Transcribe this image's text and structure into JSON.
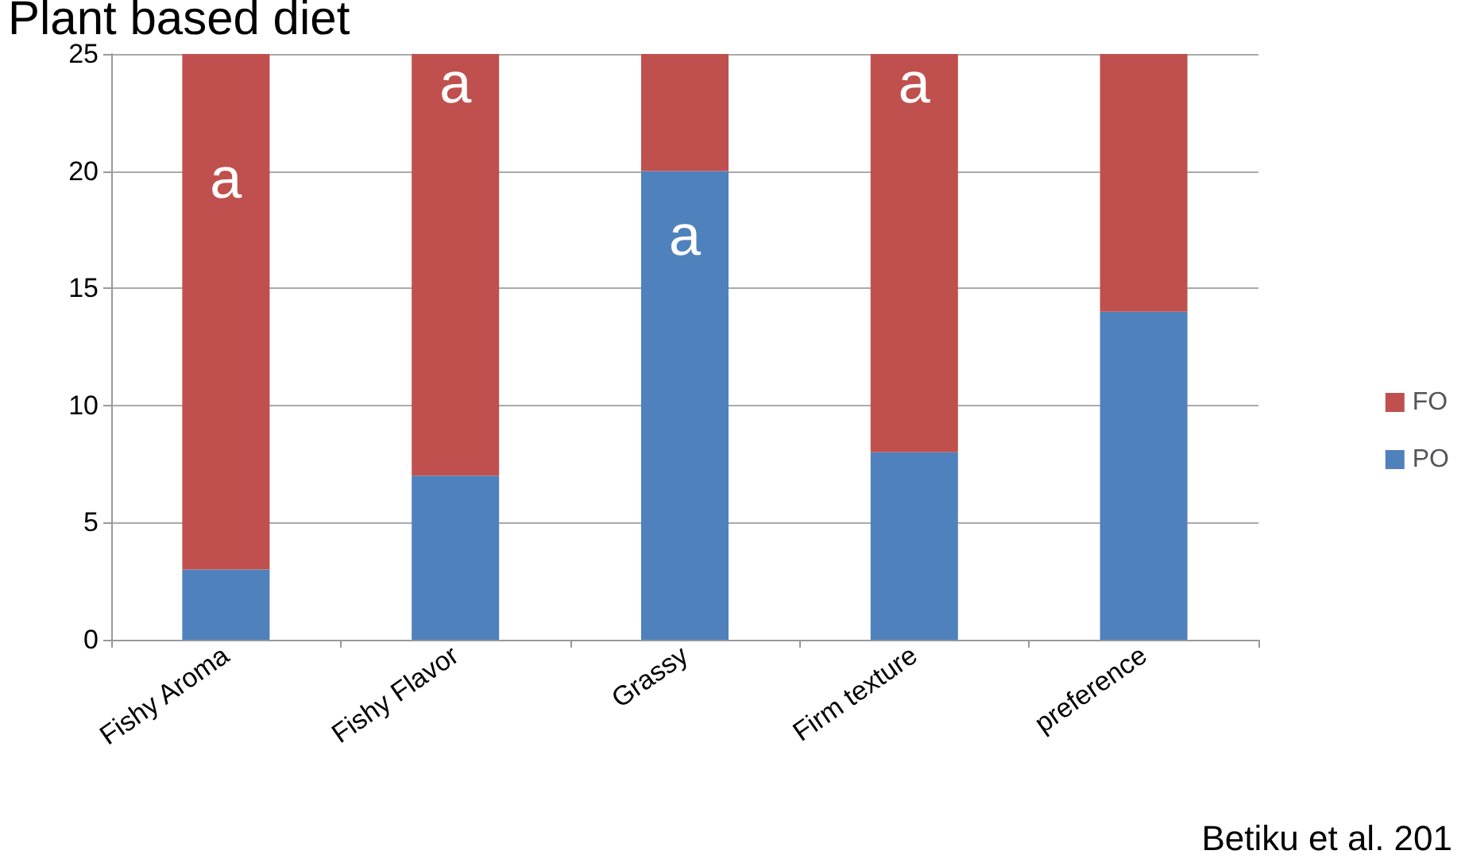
{
  "chart_data": {
    "type": "bar",
    "title": "Plant based diet",
    "stacked": true,
    "categories": [
      "Fishy Aroma",
      "Fishy Flavor",
      "Grassy",
      "Firm texture",
      "preference"
    ],
    "series": [
      {
        "name": "PO",
        "color": "#4f81bd",
        "values": [
          3,
          7,
          20,
          8,
          14
        ]
      },
      {
        "name": "FO",
        "color": "#c0504d",
        "values": [
          22,
          18,
          5,
          17,
          11
        ]
      }
    ],
    "ylim": [
      0,
      25
    ],
    "yticks": [
      0,
      5,
      10,
      15,
      20,
      25
    ],
    "grid": "y",
    "legend": "right",
    "annotations": [
      "a",
      "a",
      "a",
      "a",
      "Betiku et al. 201"
    ]
  }
}
